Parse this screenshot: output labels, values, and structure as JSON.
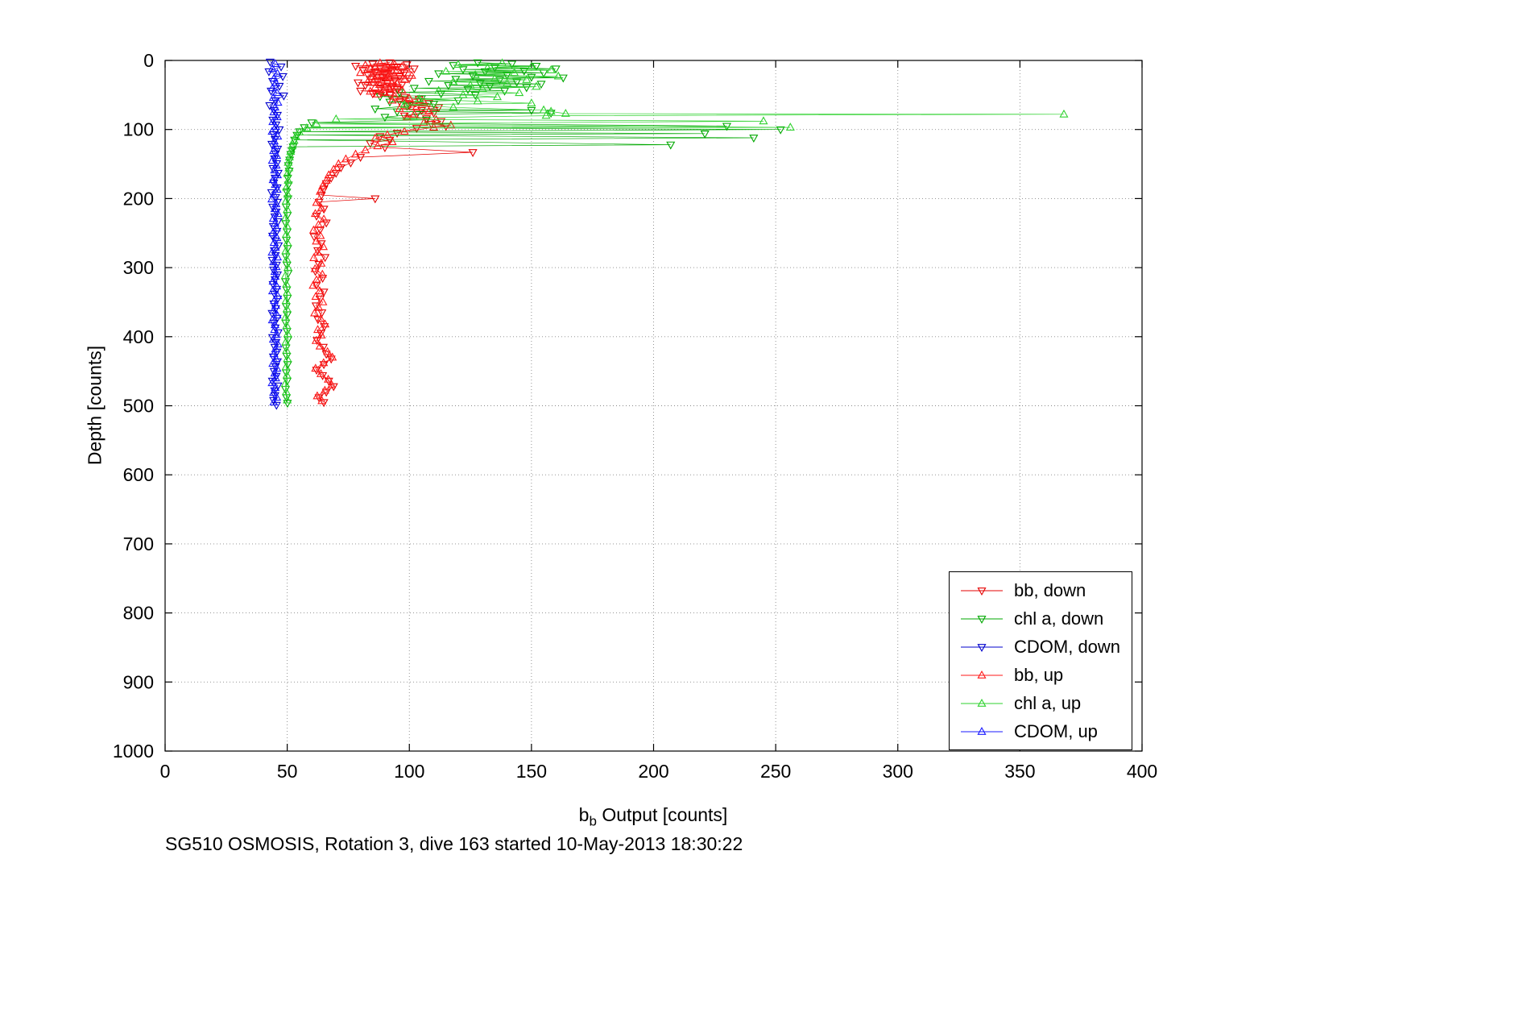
{
  "figure": {
    "title": "SG510 OSMOSIS, Rotation 3, dive 163 started 10-May-2013 18:30:22",
    "xlabel": {
      "base": "b",
      "sub": "b",
      "rest": " Output [counts]"
    },
    "ylabel": "Depth [counts]",
    "background": "#ffffff",
    "axis_color": "#000000",
    "grid_color": "#888888"
  },
  "chart_data": {
    "type": "scatter",
    "title": "SG510 OSMOSIS, Rotation 3, dive 163 started 10-May-2013 18:30:22",
    "xlabel": "b_b Output [counts]",
    "ylabel": "Depth [counts]",
    "xlim": [
      0,
      400
    ],
    "ylim": [
      0,
      1000
    ],
    "y_reversed": true,
    "grid": "dotted",
    "legend_position": "inside-lower-right",
    "xticks": [
      0,
      50,
      100,
      150,
      200,
      250,
      300,
      350,
      400
    ],
    "yticks": [
      0,
      100,
      200,
      300,
      400,
      500,
      600,
      700,
      800,
      900,
      1000
    ],
    "series": [
      {
        "id": "bb-down",
        "name": "bb, down",
        "color": "#e60000",
        "marker": "triangle-down-open",
        "x": [
          92,
          85,
          99,
          78,
          95,
          88,
          102,
          81,
          93,
          86,
          98,
          90,
          83,
          96,
          89,
          100,
          84,
          94,
          87,
          79,
          91,
          97,
          82,
          93,
          88,
          95,
          80,
          90,
          85,
          92,
          98,
          104,
          96,
          108,
          100,
          112,
          105,
          110,
          98,
          107,
          113,
          109,
          115,
          103,
          95,
          88,
          92,
          84,
          90,
          126,
          80,
          76,
          72,
          70,
          68,
          66,
          65,
          64,
          86,
          63,
          65,
          62,
          66,
          63.5,
          61,
          64,
          62.5,
          65.5,
          63,
          61.5,
          64.5,
          62,
          65,
          63.5,
          61.8,
          64.2,
          62.6,
          65.2,
          63.8,
          62.2,
          64.8,
          66,
          68,
          65,
          62,
          64.5,
          67,
          69,
          66,
          63,
          65
        ],
        "depth": [
          3,
          5,
          6,
          8,
          9,
          11,
          12,
          14,
          15,
          17,
          18,
          20,
          21,
          23,
          24,
          26,
          27,
          29,
          30,
          32,
          33,
          35,
          36,
          38,
          40,
          42,
          44,
          46,
          48,
          50,
          53,
          56,
          59,
          62,
          65,
          68,
          72,
          76,
          80,
          84,
          88,
          92,
          95,
          98,
          105,
          110,
          115,
          120,
          126,
          133,
          140,
          148,
          155,
          163,
          170,
          178,
          186,
          195,
          200,
          205,
          215,
          225,
          235,
          245,
          255,
          265,
          275,
          285,
          295,
          305,
          315,
          325,
          335,
          345,
          355,
          365,
          375,
          385,
          395,
          405,
          415,
          425,
          432,
          440,
          448,
          456,
          464,
          472,
          480,
          488,
          495
        ]
      },
      {
        "id": "chl-a-down",
        "name": "chl a, down",
        "color": "#00a800",
        "marker": "triangle-down-open",
        "x": [
          128,
          142,
          118,
          152,
          135,
          160,
          122,
          147,
          131,
          155,
          112,
          140,
          126,
          150,
          163,
          119,
          137,
          108,
          144,
          129,
          154,
          116,
          133,
          148,
          102,
          124,
          139,
          96,
          113,
          127,
          88,
          105,
          120,
          92,
          110,
          99,
          86,
          150,
          95,
          158,
          103,
          90,
          107,
          60,
          230,
          57,
          252,
          55,
          221,
          54,
          241,
          53,
          207,
          52.4,
          52,
          51.5,
          51,
          50.5,
          50.8,
          50.2,
          50.5,
          49.8,
          50.3,
          49.6,
          50.1,
          49.4,
          50,
          49.7,
          50.2,
          49.5,
          49.9,
          50.4,
          49.3,
          49.8,
          50.1,
          49.6,
          50,
          49.4,
          49.9,
          50.3,
          49.5,
          49.8,
          50.2,
          49.6,
          50,
          49.3,
          49.7,
          50.1
        ],
        "depth": [
          3,
          5,
          7,
          8,
          10,
          12,
          13,
          15,
          16,
          18,
          19,
          21,
          22,
          24,
          25,
          27,
          28,
          30,
          31,
          33,
          34,
          36,
          37,
          39,
          40,
          42,
          44,
          46,
          48,
          50,
          52,
          55,
          58,
          60,
          63,
          66,
          70,
          72,
          74,
          76,
          78,
          82,
          86,
          90,
          95,
          97,
          100,
          103,
          106,
          108,
          112,
          115,
          122,
          125,
          130,
          136,
          144,
          152,
          160,
          170,
          180,
          190,
          200,
          212,
          224,
          236,
          248,
          260,
          272,
          284,
          296,
          308,
          320,
          332,
          344,
          356,
          368,
          380,
          392,
          404,
          416,
          428,
          440,
          452,
          464,
          476,
          488,
          496
        ]
      },
      {
        "id": "cdom-down",
        "name": "CDOM, down",
        "color": "#0000cc",
        "marker": "triangle-down-open",
        "x": [
          43,
          47.5,
          42.5,
          48.2,
          44,
          46.8,
          43.4,
          48.6,
          45.2,
          42.8,
          44.6,
          46,
          44.1,
          45.4,
          46.8,
          44.4,
          45,
          43.7,
          46.1,
          45.2,
          44.8,
          45.7,
          44.2,
          46.3,
          45,
          44.5,
          45.9,
          43.6,
          45.3,
          46,
          44.1,
          45.5,
          44.9,
          46.2,
          44.3,
          45.8,
          44,
          45.1,
          46.4,
          44.7,
          45.2,
          43.9,
          45.6,
          44.4,
          46,
          45,
          44.2,
          45.7,
          44.8,
          46.1,
          44.5,
          45.3,
          43.8,
          45.9,
          44.6,
          45.1,
          46.3,
          44,
          45.4,
          44.9,
          45.8,
          44.3,
          46,
          45.2,
          44.6,
          45.5,
          43.9,
          46.2,
          44.8,
          45,
          44.4,
          45.6
        ],
        "depth": [
          2,
          9,
          16,
          23,
          30,
          37,
          44,
          51,
          58,
          65,
          72,
          79,
          86,
          93,
          100,
          107,
          114,
          121,
          128,
          135,
          142,
          149,
          156,
          163,
          170,
          177,
          184,
          191,
          198,
          205,
          212,
          219,
          226,
          233,
          240,
          247,
          254,
          261,
          268,
          275,
          282,
          289,
          296,
          303,
          310,
          317,
          324,
          331,
          338,
          345,
          352,
          359,
          366,
          373,
          380,
          387,
          394,
          401,
          408,
          415,
          422,
          429,
          436,
          443,
          450,
          457,
          464,
          471,
          478,
          485,
          492,
          499
        ]
      },
      {
        "id": "bb-up",
        "name": "bb, up",
        "color": "#ff1a1a",
        "marker": "triangle-up-open",
        "x": [
          88,
          94,
          82,
          97,
          90,
          84,
          99,
          87,
          93,
          80,
          96,
          89,
          101,
          85,
          92,
          86,
          98,
          91,
          83,
          95,
          88,
          94,
          86,
          92,
          97,
          84,
          90,
          87,
          94,
          100,
          93,
          106,
          99,
          103,
          96,
          108,
          102,
          99,
          111,
          106,
          117,
          110,
          98,
          91,
          86,
          93,
          87,
          82,
          78,
          74,
          71,
          69,
          67,
          66,
          64.5,
          63.5,
          62,
          64,
          61.5,
          65,
          62.8,
          60.8,
          63.6,
          61.9,
          64.8,
          62.4,
          60.9,
          63.9,
          61.4,
          64.4,
          62,
          60.6,
          63.3,
          61.7,
          64.6,
          62.9,
          61.2,
          63.7,
          65.5,
          62.5,
          64,
          61.8,
          63.4,
          66.5,
          68.5,
          64.9,
          61.6,
          63.8,
          66.8,
          68.2,
          65.4,
          62.3,
          64.2
        ],
        "depth": [
          4,
          6,
          7,
          9,
          10,
          12,
          13,
          15,
          16,
          18,
          19,
          21,
          22,
          24,
          25,
          27,
          28,
          30,
          31,
          33,
          35,
          37,
          39,
          41,
          43,
          45,
          47,
          49,
          52,
          55,
          58,
          61,
          64,
          67,
          70,
          74,
          78,
          82,
          86,
          90,
          94,
          97,
          103,
          108,
          113,
          118,
          124,
          130,
          136,
          143,
          150,
          158,
          166,
          174,
          182,
          190,
          206,
          214,
          222,
          230,
          238,
          246,
          254,
          262,
          270,
          278,
          286,
          294,
          302,
          310,
          318,
          326,
          334,
          342,
          350,
          358,
          366,
          374,
          382,
          390,
          398,
          406,
          414,
          422,
          430,
          438,
          446,
          454,
          462,
          470,
          478,
          486,
          493
        ]
      },
      {
        "id": "chl-a-up",
        "name": "chl a, up",
        "color": "#2fd22f",
        "marker": "triangle-up-open",
        "x": [
          138,
          120,
          150,
          132,
          158,
          115,
          143,
          127,
          161,
          135,
          148,
          118,
          140,
          125,
          152,
          130,
          112,
          145,
          122,
          136,
          104,
          128,
          150,
          98,
          118,
          155,
          158,
          164,
          368,
          156,
          70,
          245,
          62,
          256,
          58,
          55,
          53.5,
          52.8,
          52,
          51.4,
          50.9,
          50.4,
          50.7,
          50.1,
          50.4,
          49.7,
          50.2,
          49.5,
          50,
          49.3,
          49.9,
          49.6,
          50.1,
          49.4,
          49.8,
          50.3,
          49.2,
          49.7,
          50,
          49.5,
          49.9,
          49.3,
          49.8,
          50.2,
          49.4,
          49.7,
          50.1,
          49.5,
          49.9,
          49.2,
          49.6,
          50
        ],
        "depth": [
          4,
          6,
          9,
          11,
          14,
          16,
          18,
          21,
          23,
          26,
          28,
          31,
          33,
          36,
          38,
          41,
          44,
          47,
          50,
          53,
          56,
          59,
          62,
          64,
          68,
          72,
          74,
          77,
          78,
          80,
          85,
          88,
          92,
          97,
          98,
          104,
          110,
          116,
          124,
          132,
          140,
          148,
          156,
          164,
          174,
          184,
          194,
          204,
          216,
          228,
          240,
          252,
          264,
          276,
          288,
          300,
          312,
          324,
          336,
          348,
          360,
          372,
          384,
          396,
          408,
          420,
          432,
          444,
          456,
          468,
          480,
          492
        ]
      },
      {
        "id": "cdom-up",
        "name": "CDOM, up",
        "color": "#1a1aff",
        "marker": "triangle-up-open",
        "x": [
          45.1,
          43.9,
          46,
          44.6,
          45.4,
          44,
          45.8,
          44.3,
          46.2,
          45,
          44.5,
          45.9,
          44.1,
          45.3,
          43.8,
          46.1,
          44.7,
          45.2,
          44.4,
          45.7,
          43.9,
          45.5,
          44.8,
          46,
          44.2,
          45.1,
          45.9,
          44.5,
          43.7,
          45.4,
          44.9,
          46.2,
          44.3,
          45,
          45.6,
          44.1,
          45.8,
          44.6,
          45.2,
          43.8,
          46,
          44.4,
          45.5,
          44.9,
          45.1,
          44.2,
          45.7,
          44,
          46.1,
          44.7,
          45.3,
          44.5,
          45.9,
          43.9,
          45,
          44.8,
          45.6,
          44.3,
          46.2,
          45.2,
          44.6,
          45.4,
          44.1,
          45.8,
          44.9,
          45.3,
          43.8,
          45.1,
          44.4,
          45.7,
          44.5
        ],
        "depth": [
          5,
          12,
          19,
          26,
          33,
          40,
          47,
          54,
          61,
          68,
          75,
          82,
          89,
          96,
          103,
          110,
          117,
          124,
          131,
          138,
          145,
          152,
          159,
          166,
          173,
          180,
          187,
          194,
          201,
          208,
          215,
          222,
          229,
          236,
          243,
          250,
          257,
          264,
          271,
          278,
          285,
          292,
          299,
          306,
          313,
          320,
          327,
          334,
          341,
          348,
          355,
          362,
          369,
          376,
          383,
          390,
          397,
          404,
          411,
          418,
          425,
          432,
          439,
          446,
          453,
          460,
          467,
          474,
          481,
          488,
          495
        ]
      }
    ]
  },
  "legend": {
    "entries": [
      "bb, down",
      "chl a, down",
      "CDOM, down",
      "bb, up",
      "chl a, up",
      "CDOM, up"
    ]
  }
}
